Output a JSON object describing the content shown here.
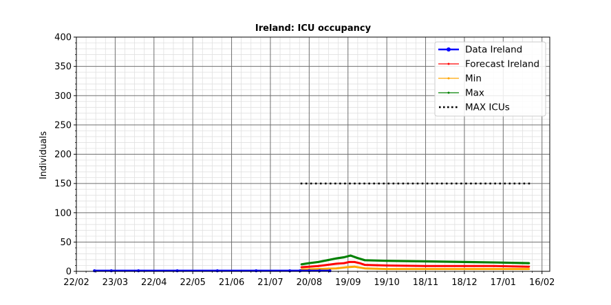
{
  "chart_data": {
    "type": "line",
    "title": "Ireland: ICU occupancy",
    "xlabel": "",
    "ylabel": "Individuals",
    "ylim": [
      0,
      400
    ],
    "xlim": [
      "2020-02-22",
      "2021-02-22"
    ],
    "x_tick_labels": [
      "22/02",
      "23/03",
      "22/04",
      "22/05",
      "21/06",
      "21/07",
      "20/08",
      "19/09",
      "19/10",
      "18/11",
      "18/12",
      "17/01",
      "16/02"
    ],
    "x_tick_dates": [
      "2020-02-22",
      "2020-03-23",
      "2020-04-22",
      "2020-05-22",
      "2020-06-21",
      "2020-07-21",
      "2020-08-20",
      "2020-09-19",
      "2020-10-19",
      "2020-11-18",
      "2020-12-18",
      "2021-01-17",
      "2021-02-16"
    ],
    "y_ticks": [
      0,
      50,
      100,
      150,
      200,
      250,
      300,
      350,
      400
    ],
    "grid": true,
    "legend_position": "top-right",
    "series": [
      {
        "name": "Data Ireland",
        "color": "#0000ff",
        "x": [
          "2020-03-07",
          "2020-03-20",
          "2020-04-10",
          "2020-05-10",
          "2020-06-10",
          "2020-07-10",
          "2020-08-05",
          "2020-08-13",
          "2020-08-20",
          "2020-08-28",
          "2020-09-05"
        ],
        "y": [
          1,
          1,
          1,
          1,
          1,
          1,
          1,
          1,
          1,
          1,
          1
        ]
      },
      {
        "name": "Forecast Ireland",
        "color": "#ff0000",
        "x": [
          "2020-08-14",
          "2020-08-20",
          "2020-08-27",
          "2020-09-03",
          "2020-09-10",
          "2020-09-16",
          "2020-09-20",
          "2020-09-24",
          "2020-09-28",
          "2020-10-02",
          "2020-10-19",
          "2020-11-18",
          "2020-12-18",
          "2021-01-10",
          "2021-02-06"
        ],
        "y": [
          7,
          8,
          9,
          11,
          13,
          14,
          16,
          16,
          14,
          11,
          10,
          9,
          9,
          9,
          8
        ]
      },
      {
        "name": "Min",
        "color": "#ffa500",
        "x": [
          "2020-08-14",
          "2020-08-27",
          "2020-09-10",
          "2020-09-18",
          "2020-09-24",
          "2020-10-02",
          "2020-10-19",
          "2020-11-18",
          "2021-01-17",
          "2021-02-06"
        ],
        "y": [
          3,
          4,
          5,
          7,
          8,
          5,
          4,
          4,
          4,
          4
        ]
      },
      {
        "name": "Max",
        "color": "#008000",
        "x": [
          "2020-08-14",
          "2020-08-20",
          "2020-08-27",
          "2020-09-03",
          "2020-09-10",
          "2020-09-16",
          "2020-09-21",
          "2020-09-26",
          "2020-10-02",
          "2020-10-19",
          "2020-11-18",
          "2020-12-18",
          "2021-01-14",
          "2021-02-06"
        ],
        "y": [
          12,
          14,
          16,
          19,
          22,
          24,
          27,
          23,
          19,
          18,
          17,
          16,
          15,
          14
        ]
      },
      {
        "name": "MAX ICUs",
        "color": "#000000",
        "style": "dotted",
        "x": [
          "2020-08-14",
          "2021-02-06"
        ],
        "y": [
          150,
          150
        ]
      }
    ]
  }
}
